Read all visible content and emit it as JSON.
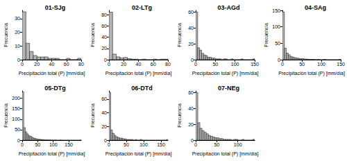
{
  "chart_data": [
    {
      "type": "histogram",
      "title": "01-SJg",
      "x_label": "Precipitación total (P) [mm/día]",
      "y_label": "Frecuencia",
      "bins": [
        0,
        5,
        10,
        15,
        20,
        25,
        30,
        35,
        40,
        45,
        50,
        55,
        60,
        65,
        70,
        75,
        80
      ],
      "values": [
        35,
        12,
        6,
        3,
        2,
        2,
        2,
        1,
        1,
        1,
        0,
        0,
        1,
        0,
        0,
        1
      ],
      "color": "#b3b3b3",
      "xlim": [
        0,
        80
      ],
      "xticks": [
        0,
        20,
        40,
        60,
        80
      ],
      "ylim": [
        0,
        36
      ],
      "yticks": [
        0,
        10,
        20,
        30
      ],
      "grid": false
    },
    {
      "type": "histogram",
      "title": "02-LTg",
      "x_label": "Precipitación total (P) [mm/día]",
      "y_label": "Frecuencia",
      "bins": [
        0,
        5,
        10,
        15,
        20,
        25,
        30,
        35,
        40,
        45,
        50,
        55,
        60,
        65,
        70,
        75,
        80
      ],
      "values": [
        85,
        10,
        5,
        3,
        4,
        2,
        1,
        1,
        0,
        1,
        0,
        0,
        1,
        0,
        1,
        1
      ],
      "color": "#b3b3b3",
      "xlim": [
        0,
        80
      ],
      "xticks": [
        0,
        20,
        40,
        60,
        80
      ],
      "ylim": [
        0,
        88
      ],
      "yticks": [
        0,
        20,
        40,
        60,
        80
      ],
      "grid": false
    },
    {
      "type": "histogram",
      "title": "03-AGd",
      "x_label": "Precipitación total (P) [mm/día]",
      "y_label": "Frecuencia",
      "bins": [
        0,
        5,
        10,
        15,
        20,
        25,
        30,
        35,
        40,
        45,
        50,
        55,
        60,
        65,
        70,
        75,
        80,
        85,
        90,
        95,
        100,
        105,
        110,
        115,
        120,
        125,
        130,
        135,
        140,
        145,
        150
      ],
      "values": [
        60,
        15,
        12,
        8,
        6,
        5,
        3,
        3,
        2,
        2,
        1,
        1,
        1,
        0,
        1,
        1,
        0,
        0,
        1,
        0,
        0,
        0,
        0,
        1,
        0,
        0,
        0,
        0,
        0,
        1
      ],
      "color": "#b3b3b3",
      "xlim": [
        0,
        150
      ],
      "xticks": [
        0,
        50,
        100,
        150
      ],
      "ylim": [
        0,
        62
      ],
      "yticks": [
        0,
        20,
        40,
        60
      ],
      "grid": false
    },
    {
      "type": "histogram",
      "title": "04-SAg",
      "x_label": "Precipitación total (P) [mm/día]",
      "y_label": "Frecuencia",
      "bins": [
        0,
        5,
        10,
        15,
        20,
        25,
        30,
        35,
        40,
        45,
        50,
        55,
        60,
        65,
        70,
        75,
        80,
        85,
        90,
        95,
        100,
        105,
        110,
        115,
        120,
        125,
        130,
        135,
        140,
        145,
        150
      ],
      "values": [
        145,
        35,
        20,
        15,
        10,
        8,
        6,
        5,
        4,
        3,
        3,
        2,
        2,
        1,
        1,
        1,
        1,
        0,
        1,
        0,
        0,
        1,
        0,
        0,
        0,
        0,
        0,
        0,
        0,
        1
      ],
      "color": "#b3b3b3",
      "xlim": [
        0,
        150
      ],
      "xticks": [
        0,
        50,
        100,
        150
      ],
      "ylim": [
        0,
        150
      ],
      "yticks": [
        0,
        50,
        100,
        150
      ],
      "grid": false
    },
    {
      "type": "histogram",
      "title": "05-DTg",
      "x_label": "Precipitación total (P) [mm/día]",
      "y_label": "Frecuencia",
      "bins": [
        0,
        5,
        10,
        15,
        20,
        25,
        30,
        35,
        40,
        45,
        50,
        55,
        60,
        65,
        70,
        75,
        80,
        85,
        90,
        95,
        100,
        105,
        110,
        115,
        120,
        125,
        130,
        135,
        140,
        145,
        150,
        155,
        160,
        165,
        170,
        175,
        180,
        185,
        190
      ],
      "values": [
        230,
        60,
        40,
        30,
        22,
        18,
        14,
        10,
        8,
        6,
        5,
        4,
        3,
        3,
        2,
        2,
        1,
        1,
        1,
        1,
        0,
        1,
        0,
        0,
        1,
        0,
        0,
        0,
        0,
        0,
        0,
        0,
        0,
        0,
        0,
        0,
        0,
        1
      ],
      "color": "#b3b3b3",
      "xlim": [
        0,
        190
      ],
      "xticks": [
        0,
        50,
        100,
        150
      ],
      "ylim": [
        0,
        235
      ],
      "yticks": [
        0,
        50,
        100,
        150,
        200
      ],
      "grid": false
    },
    {
      "type": "histogram",
      "title": "06-DTd",
      "x_label": "Precipitación total (P) [mm/día]",
      "y_label": "Frecuencia",
      "bins": [
        0,
        5,
        10,
        15,
        20,
        25,
        30,
        35,
        40,
        45,
        50,
        55,
        60,
        65,
        70,
        75,
        80,
        85,
        90,
        95,
        100,
        105,
        110,
        115,
        120,
        125,
        130,
        135,
        140,
        145,
        150,
        155,
        160,
        165,
        170
      ],
      "values": [
        70,
        15,
        10,
        7,
        5,
        4,
        3,
        3,
        2,
        2,
        1,
        1,
        1,
        1,
        0,
        1,
        0,
        0,
        1,
        0,
        0,
        0,
        0,
        0,
        0,
        0,
        0,
        0,
        0,
        0,
        0,
        0,
        0,
        1
      ],
      "color": "#b3b3b3",
      "xlim": [
        0,
        170
      ],
      "xticks": [
        0,
        50,
        100,
        150
      ],
      "ylim": [
        0,
        72
      ],
      "yticks": [
        0,
        20,
        40,
        60
      ],
      "grid": false
    },
    {
      "type": "histogram",
      "title": "07-NEg",
      "x_label": "Precipitación total (P) [mm/día]",
      "y_label": "Frecuencia",
      "bins": [
        0,
        5,
        10,
        15,
        20,
        25,
        30,
        35,
        40,
        45,
        50,
        55,
        60,
        65,
        70,
        75,
        80,
        85,
        90,
        95,
        100,
        105,
        110,
        115,
        120,
        125,
        130,
        135,
        140
      ],
      "values": [
        60,
        22,
        15,
        12,
        10,
        8,
        6,
        5,
        4,
        3,
        3,
        2,
        2,
        1,
        1,
        1,
        1,
        0,
        1,
        1,
        0,
        0,
        1,
        0,
        0,
        0,
        0,
        1
      ],
      "color": "#b3b3b3",
      "xlim": [
        0,
        140
      ],
      "xticks": [
        0,
        50,
        100
      ],
      "ylim": [
        0,
        62
      ],
      "yticks": [
        0,
        20,
        40,
        60
      ],
      "grid": false
    }
  ]
}
